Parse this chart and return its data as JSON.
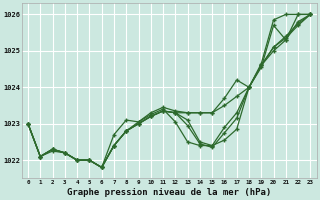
{
  "x": [
    0,
    1,
    2,
    3,
    4,
    5,
    6,
    7,
    8,
    9,
    10,
    11,
    12,
    13,
    14,
    15,
    16,
    17,
    18,
    19,
    20,
    21,
    22,
    23
  ],
  "line_top": [
    1023.0,
    1022.1,
    1022.3,
    1022.2,
    1022.0,
    1022.0,
    1021.8,
    1022.4,
    1022.8,
    1023.05,
    1023.3,
    1023.45,
    1023.35,
    1023.3,
    1023.3,
    1023.3,
    1023.5,
    1023.75,
    1024.0,
    1024.55,
    1025.7,
    1025.3,
    1025.8,
    1026.0
  ],
  "line_mid1": [
    1023.0,
    1022.1,
    1022.3,
    1022.2,
    1022.0,
    1022.0,
    1021.8,
    1022.4,
    1022.8,
    1023.0,
    1023.2,
    1023.35,
    1023.3,
    1023.1,
    1022.5,
    1022.4,
    1022.9,
    1023.3,
    1024.0,
    1024.6,
    1025.1,
    1025.4,
    1025.75,
    1026.0
  ],
  "line_mid2": [
    1023.0,
    1022.1,
    1022.3,
    1022.2,
    1022.0,
    1022.0,
    1021.8,
    1022.4,
    1022.8,
    1023.0,
    1023.2,
    1023.35,
    1023.3,
    1022.95,
    1022.45,
    1022.35,
    1022.75,
    1023.15,
    1024.0,
    1024.6,
    1025.1,
    1025.35,
    1025.7,
    1026.0
  ],
  "line_low": [
    1023.0,
    1022.1,
    1022.3,
    1022.2,
    1022.0,
    1022.0,
    1021.8,
    1022.7,
    1023.1,
    1023.05,
    1023.25,
    1023.4,
    1023.05,
    1022.5,
    1022.4,
    1022.4,
    1022.55,
    1022.85,
    1024.0,
    1024.6,
    1025.0,
    1025.3,
    1026.0,
    1026.0
  ],
  "line_high": [
    1023.0,
    1022.1,
    1022.25,
    1022.2,
    1022.0,
    1022.0,
    1021.8,
    1022.4,
    1022.8,
    1023.0,
    1023.2,
    1023.35,
    1023.3,
    1023.3,
    1023.3,
    1023.3,
    1023.7,
    1024.2,
    1024.0,
    1024.65,
    1025.85,
    1026.0,
    1026.0,
    1026.0
  ],
  "bg_color": "#cce8e0",
  "grid_color": "#ffffff",
  "line_color": "#2d6a2d",
  "xlabel": "Graphe pression niveau de la mer (hPa)",
  "ylim": [
    1021.5,
    1026.3
  ],
  "yticks": [
    1022,
    1023,
    1024,
    1025,
    1026
  ],
  "xlim": [
    -0.5,
    23.5
  ],
  "xticks": [
    0,
    1,
    2,
    3,
    4,
    5,
    6,
    7,
    8,
    9,
    10,
    11,
    12,
    13,
    14,
    15,
    16,
    17,
    18,
    19,
    20,
    21,
    22,
    23
  ]
}
